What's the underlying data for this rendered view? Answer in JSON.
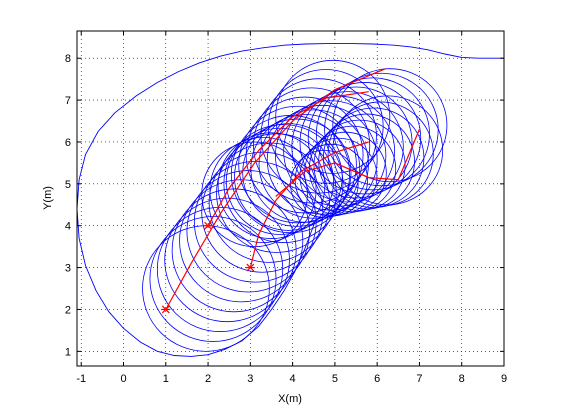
{
  "chart_data": {
    "type": "line",
    "xlabel": "X(m)",
    "ylabel": "Y(m)",
    "xlim": [
      -1.1,
      9
    ],
    "ylim": [
      0.65,
      8.65
    ],
    "xticks": [
      -1,
      0,
      1,
      2,
      3,
      4,
      5,
      6,
      7,
      8,
      9
    ],
    "yticks": [
      1,
      2,
      3,
      4,
      5,
      6,
      7,
      8
    ],
    "xtick_labels": [
      "-1",
      "0",
      "1",
      "2",
      "3",
      "4",
      "5",
      "6",
      "7",
      "8",
      "9"
    ],
    "ytick_labels": [
      "1",
      "2",
      "3",
      "4",
      "5",
      "6",
      "7",
      "8"
    ],
    "grid": true,
    "grid_style": "dotted",
    "colors": {
      "boundary": "#0000ff",
      "circles": "#0000ff",
      "trajectories": "#ff0000",
      "axes": "#000000"
    },
    "boundary_curve": {
      "x": [
        9.0,
        8.4,
        8.0,
        7.6,
        7.2,
        6.8,
        6.4,
        5.9,
        5.4,
        4.8,
        4.3,
        3.8,
        3.3,
        2.8,
        2.3,
        1.8,
        1.3,
        0.8,
        0.3,
        -0.2,
        -0.6,
        -0.9,
        -1.05,
        -1.1,
        -1.05,
        -0.9,
        -0.65,
        -0.35,
        0.0,
        0.4,
        0.8,
        1.2,
        1.6,
        2.0,
        2.4,
        2.8,
        3.2,
        3.5,
        3.8,
        4.05,
        4.25,
        4.42,
        4.55
      ],
      "y": [
        8.0,
        8.0,
        8.02,
        8.1,
        8.2,
        8.27,
        8.31,
        8.34,
        8.35,
        8.35,
        8.34,
        8.31,
        8.25,
        8.17,
        8.05,
        7.89,
        7.68,
        7.42,
        7.1,
        6.7,
        6.25,
        5.7,
        5.1,
        4.4,
        3.7,
        3.05,
        2.45,
        1.95,
        1.55,
        1.22,
        1.0,
        0.9,
        0.88,
        0.92,
        1.05,
        1.25,
        1.6,
        2.0,
        2.45,
        2.9,
        3.35,
        3.8,
        4.15
      ]
    },
    "circle_sweeps": [
      {
        "start": [
          1.95,
          2.5
        ],
        "end": [
          4.95,
          6.6
        ],
        "r_start": 1.5,
        "r_end": 1.35,
        "count": 19
      },
      {
        "start": [
          3.1,
          4.75
        ],
        "end": [
          6.3,
          6.4
        ],
        "r_start": 1.25,
        "r_end": 1.35,
        "count": 17
      },
      {
        "start": [
          4.75,
          5.0
        ],
        "end": [
          6.25,
          5.8
        ],
        "r_start": 0.8,
        "r_end": 1.3,
        "count": 10
      }
    ],
    "trajectories": [
      {
        "x": [
          1.0,
          1.6,
          2.3,
          3.1,
          4.0,
          5.0,
          6.2
        ],
        "y": [
          2.0,
          3.1,
          4.3,
          5.5,
          6.5,
          7.25,
          7.75
        ]
      },
      {
        "x": [
          2.0,
          2.5,
          3.2,
          4.0,
          4.8,
          5.8
        ],
        "y": [
          4.0,
          4.9,
          5.8,
          6.6,
          7.05,
          7.2
        ]
      },
      {
        "x": [
          3.0,
          3.2,
          3.6,
          4.2,
          5.0,
          5.8
        ],
        "y": [
          3.0,
          3.8,
          4.6,
          5.3,
          5.75,
          6.0
        ]
      },
      {
        "x": [
          3.6,
          4.3,
          5.0,
          5.8,
          6.5,
          7.0
        ],
        "y": [
          4.7,
          5.3,
          5.5,
          5.15,
          5.1,
          6.3
        ]
      }
    ],
    "start_markers": [
      {
        "x": 1.0,
        "y": 2.0
      },
      {
        "x": 2.0,
        "y": 4.0
      },
      {
        "x": 3.0,
        "y": 3.0
      }
    ]
  }
}
